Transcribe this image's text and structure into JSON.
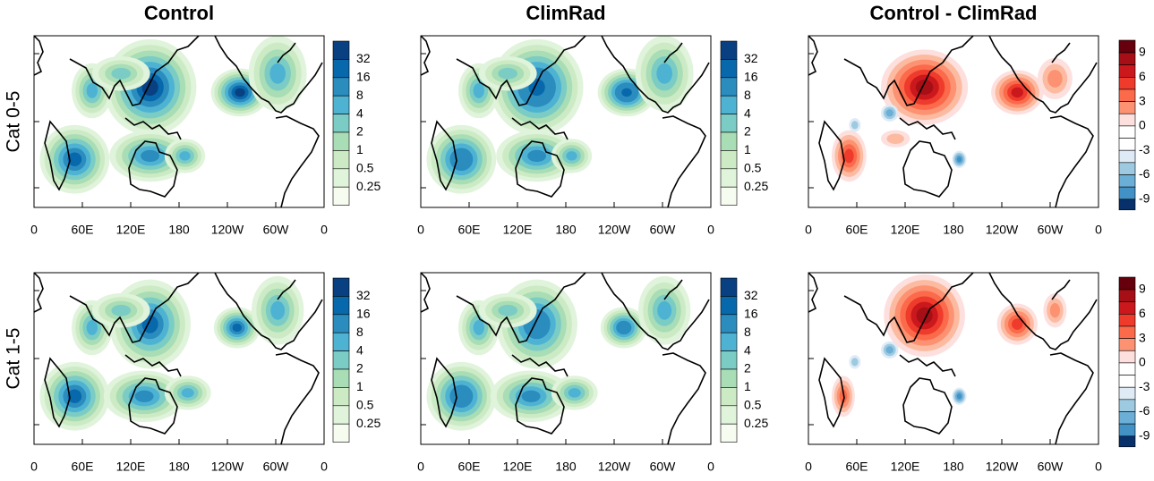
{
  "columns": [
    "Control",
    "ClimRad",
    "Control - ClimRad"
  ],
  "rows": [
    "Cat 0-5",
    "Cat 1-5"
  ],
  "x_ticks": [
    "0",
    "60E",
    "120E",
    "180",
    "120W",
    "60W",
    "0"
  ],
  "colorbars": {
    "density": [
      32,
      16,
      8,
      4,
      2,
      1,
      0.5,
      0.25
    ],
    "difference": [
      9,
      6,
      3,
      0,
      -3,
      -6,
      -9
    ]
  }
}
